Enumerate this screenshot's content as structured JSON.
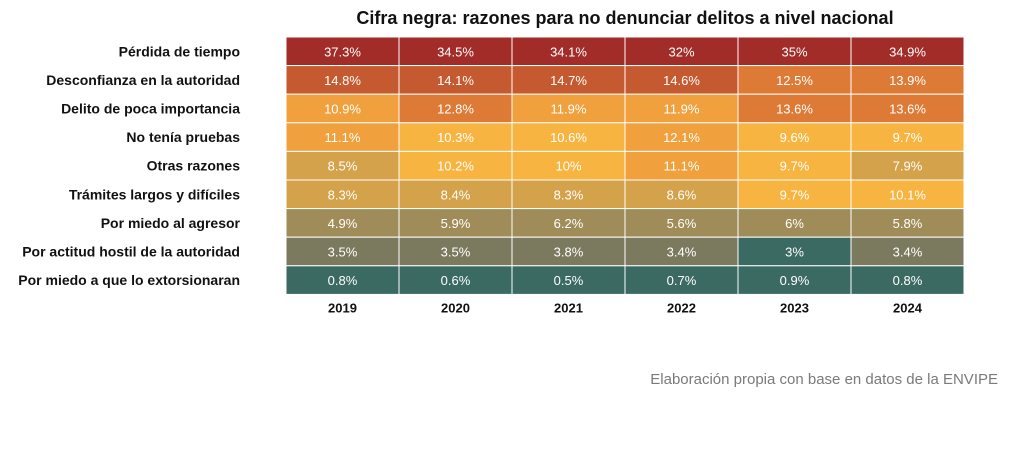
{
  "chart_data": {
    "type": "heatmap",
    "title": "Cifra negra: razones para no denunciar delitos a nivel nacional",
    "x": [
      "2019",
      "2020",
      "2021",
      "2022",
      "2023",
      "2024"
    ],
    "y": [
      "Pérdida de tiempo",
      "Desconfianza en la autoridad",
      "Delito de poca importancia",
      "No tenía pruebas",
      "Otras razones",
      "Trámites largos y difíciles",
      "Por miedo al agresor",
      "Por actitud hostil de la autoridad",
      "Por miedo a que lo extorsionaran"
    ],
    "values": [
      [
        37.3,
        34.5,
        34.1,
        32,
        35,
        34.9
      ],
      [
        14.8,
        14.1,
        14.7,
        14.6,
        12.5,
        13.9
      ],
      [
        10.9,
        12.8,
        11.9,
        11.9,
        13.6,
        13.6
      ],
      [
        11.1,
        10.3,
        10.6,
        12.1,
        9.6,
        9.7
      ],
      [
        8.5,
        10.2,
        10,
        11.1,
        9.7,
        7.9
      ],
      [
        8.3,
        8.4,
        8.3,
        8.6,
        9.7,
        10.1
      ],
      [
        4.9,
        5.9,
        6.2,
        5.6,
        6,
        5.8
      ],
      [
        3.5,
        3.5,
        3.8,
        3.4,
        3,
        3.4
      ],
      [
        0.8,
        0.6,
        0.5,
        0.7,
        0.9,
        0.8
      ]
    ],
    "value_suffix": "%",
    "colorscale": [
      "#3a6a62",
      "#7b7a5e",
      "#a08c58",
      "#d4a24a",
      "#f8b440",
      "#f0a03c",
      "#dd7a36",
      "#c55a30",
      "#a22c28"
    ]
  },
  "footer": {
    "source": "Elaboración propia con base en datos de la ENVIPE"
  }
}
